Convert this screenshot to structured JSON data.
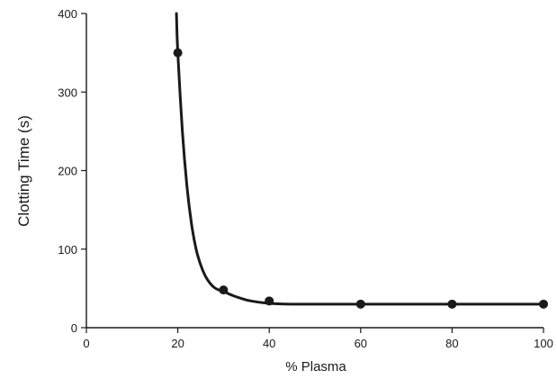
{
  "chart_data": {
    "type": "line",
    "title": "",
    "xlabel": "% Plasma",
    "ylabel": "Clotting Time (s)",
    "xlim": [
      0,
      100
    ],
    "ylim": [
      0,
      400
    ],
    "x_ticks": [
      0,
      20,
      40,
      60,
      80,
      100
    ],
    "y_ticks": [
      0,
      100,
      200,
      300,
      400
    ],
    "grid": false,
    "series": [
      {
        "x": [
          20,
          30,
          40,
          60,
          80,
          100
        ],
        "y": [
          350,
          48,
          34,
          30,
          30,
          30
        ]
      }
    ],
    "fitted_curve": {
      "x": [
        19.7,
        20,
        21,
        22,
        23,
        24,
        25,
        26,
        27,
        28,
        29,
        30,
        32,
        34,
        36,
        40,
        45,
        50,
        60,
        80,
        100
      ],
      "y": [
        400,
        350,
        250,
        180,
        132,
        100,
        80,
        66,
        57,
        51,
        48,
        46,
        41,
        37,
        34,
        31,
        30,
        30,
        30,
        30,
        30
      ]
    }
  }
}
